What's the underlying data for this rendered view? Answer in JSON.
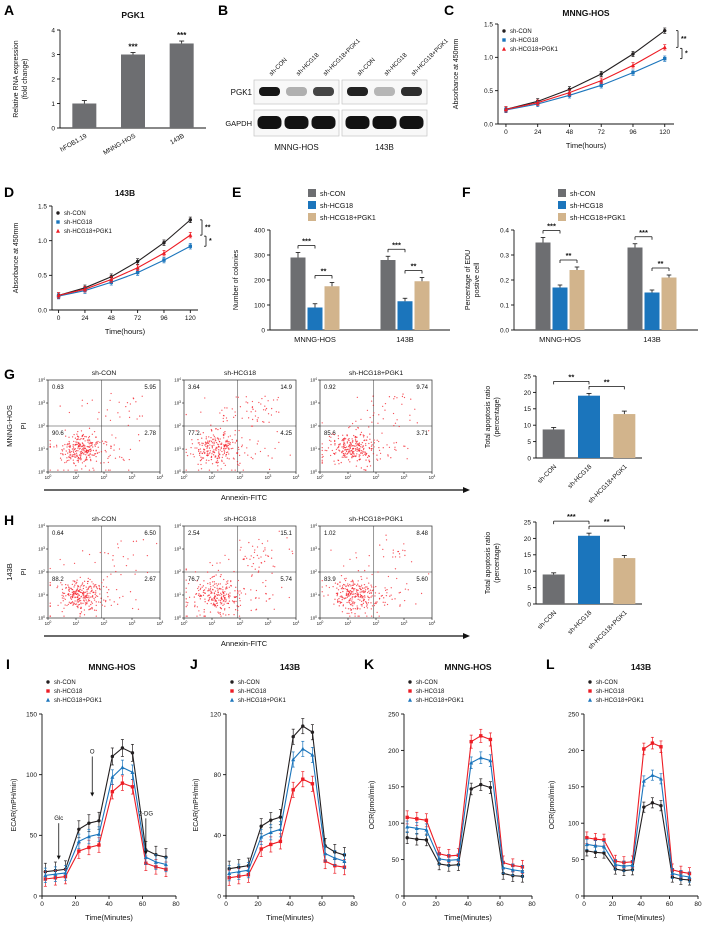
{
  "panel_letters": [
    "A",
    "B",
    "C",
    "D",
    "E",
    "F",
    "G",
    "H",
    "I",
    "J",
    "K",
    "L"
  ],
  "colors": {
    "black": "#231f20",
    "blue": "#1b75bc",
    "red": "#ed1c24",
    "gray_bar": "#6d6e71",
    "tan_bar": "#d2b48c",
    "flow_dot": "#f5222d"
  },
  "chart_data": [
    {
      "id": "A",
      "type": "bar",
      "title": "PGK1",
      "ylabel": "Relative RNA expression\n(fold change)",
      "categories": [
        "hFOB1.19",
        "MNNG-HOS",
        "143B"
      ],
      "values": [
        1.0,
        3.0,
        3.45
      ],
      "errors": [
        0.12,
        0.08,
        0.1
      ],
      "bar_color": "#6d6e71",
      "ylim": [
        0,
        4
      ],
      "yticks": [
        0,
        1,
        2,
        3,
        4
      ],
      "ydec": 0,
      "sig_above": [
        "",
        "***",
        "***"
      ],
      "xrot": 30
    },
    {
      "id": "B",
      "type": "western_blot",
      "lane_labels": [
        "sh-CON",
        "sh-HCG18",
        "sh-HCG18+PGK1"
      ],
      "row_labels": [
        "PGK1",
        "GAPDH"
      ],
      "group_labels": [
        "MNNG-HOS",
        "143B"
      ],
      "pgk1_intensity": [
        [
          0.95,
          0.3,
          0.75
        ],
        [
          0.9,
          0.28,
          0.85
        ]
      ],
      "gapdh_intensity": [
        [
          0.97,
          0.97,
          0.97
        ],
        [
          0.97,
          0.97,
          0.97
        ]
      ]
    },
    {
      "id": "C",
      "type": "line",
      "title": "MNNG-HOS",
      "ylabel": "Absorbance at 450mm",
      "xlabel": "Time(hours)",
      "x": [
        0,
        24,
        48,
        72,
        96,
        120
      ],
      "xticks": [
        0,
        24,
        48,
        72,
        96,
        120
      ],
      "xlim": [
        -6,
        127
      ],
      "ylim": [
        0,
        1.5
      ],
      "yticks": [
        0,
        0.5,
        1.0,
        1.5
      ],
      "ydec": 1,
      "sig_right": [
        "**",
        "*"
      ],
      "series": [
        {
          "name": "sh-CON",
          "color": "#231f20",
          "marker": "circle",
          "err": 0.04,
          "values": [
            0.22,
            0.34,
            0.52,
            0.75,
            1.05,
            1.4
          ]
        },
        {
          "name": "sh-HCG18",
          "color": "#1b75bc",
          "marker": "square",
          "err": 0.04,
          "values": [
            0.21,
            0.3,
            0.43,
            0.58,
            0.77,
            0.98
          ]
        },
        {
          "name": "sh-HCG18+PGK1",
          "color": "#ed1c24",
          "marker": "triangle",
          "err": 0.04,
          "values": [
            0.22,
            0.32,
            0.47,
            0.65,
            0.88,
            1.15
          ]
        }
      ]
    },
    {
      "id": "D",
      "type": "line",
      "title": "143B",
      "ylabel": "Absorbance at 450mm",
      "xlabel": "Time(hours)",
      "x": [
        0,
        24,
        48,
        72,
        96,
        120
      ],
      "xticks": [
        0,
        24,
        48,
        72,
        96,
        120
      ],
      "xlim": [
        -6,
        127
      ],
      "ylim": [
        0,
        1.5
      ],
      "yticks": [
        0,
        0.5,
        1.0,
        1.5
      ],
      "ydec": 1,
      "sig_right": [
        "**",
        "*"
      ],
      "series": [
        {
          "name": "sh-CON",
          "color": "#231f20",
          "marker": "circle",
          "err": 0.04,
          "values": [
            0.21,
            0.32,
            0.48,
            0.7,
            0.97,
            1.3
          ]
        },
        {
          "name": "sh-HCG18",
          "color": "#1b75bc",
          "marker": "square",
          "err": 0.04,
          "values": [
            0.2,
            0.28,
            0.4,
            0.54,
            0.72,
            0.92
          ]
        },
        {
          "name": "sh-HCG18+PGK1",
          "color": "#ed1c24",
          "marker": "triangle",
          "err": 0.04,
          "values": [
            0.21,
            0.3,
            0.44,
            0.61,
            0.82,
            1.08
          ]
        }
      ]
    },
    {
      "id": "E",
      "type": "grouped_bar",
      "ylabel": "Number of colonies",
      "categories": [
        "MNNG-HOS",
        "143B"
      ],
      "ylim": [
        0,
        400
      ],
      "yticks": [
        0,
        100,
        200,
        300,
        400
      ],
      "ydec": 0,
      "series": [
        {
          "name": "sh-CON",
          "color": "#6d6e71",
          "values": [
            290,
            280
          ],
          "errors": [
            20,
            15
          ]
        },
        {
          "name": "sh-HCG18",
          "color": "#1b75bc",
          "values": [
            90,
            115
          ],
          "errors": [
            15,
            12
          ]
        },
        {
          "name": "sh-HCG18+PGK1",
          "color": "#d2b48c",
          "values": [
            175,
            195
          ],
          "errors": [
            15,
            15
          ]
        }
      ],
      "sig": [
        [
          0,
          0,
          1,
          "***"
        ],
        [
          0,
          1,
          2,
          "**"
        ],
        [
          1,
          0,
          1,
          "***"
        ],
        [
          1,
          1,
          2,
          "**"
        ]
      ]
    },
    {
      "id": "F",
      "type": "grouped_bar",
      "ylabel": "Percentage of EDU\npostive cell",
      "categories": [
        "MNNG-HOS",
        "143B"
      ],
      "ylim": [
        0,
        0.4
      ],
      "yticks": [
        0,
        0.1,
        0.2,
        0.3,
        0.4
      ],
      "ydec": 1,
      "series": [
        {
          "name": "sh-CON",
          "color": "#6d6e71",
          "values": [
            0.35,
            0.33
          ],
          "errors": [
            0.02,
            0.015
          ]
        },
        {
          "name": "sh-HCG18",
          "color": "#1b75bc",
          "values": [
            0.17,
            0.15
          ],
          "errors": [
            0.01,
            0.01
          ]
        },
        {
          "name": "sh-HCG18+PGK1",
          "color": "#d2b48c",
          "values": [
            0.24,
            0.21
          ],
          "errors": [
            0.012,
            0.01
          ]
        }
      ],
      "sig": [
        [
          0,
          0,
          1,
          "***"
        ],
        [
          0,
          1,
          2,
          "**"
        ],
        [
          1,
          0,
          1,
          "***"
        ],
        [
          1,
          1,
          2,
          "**"
        ]
      ]
    },
    {
      "id": "G",
      "type": "flow_row",
      "cell_line": "MNNG-HOS",
      "pi_label": "PI",
      "xlabel": "Annexin-FITC",
      "tick_exponents": [
        "0",
        "1",
        "2",
        "3",
        "4"
      ],
      "plots": [
        {
          "title": "sh-CON",
          "ul": "0.63",
          "ur": "5.95",
          "ll": "90.6",
          "lr": "2.78"
        },
        {
          "title": "sh-HCG18",
          "ul": "3.64",
          "ur": "14.9",
          "ll": "77.2",
          "lr": "4.25"
        },
        {
          "title": "sh-HCG18+PGK1",
          "ul": "0.92",
          "ur": "9.74",
          "ll": "85.6",
          "lr": "3.71"
        }
      ]
    },
    {
      "id": "Gbar",
      "type": "bar",
      "ylabel": "Total apoptosis ratio\n(percentage)",
      "categories": [
        "sh-CON",
        "sh-HCG18",
        "sh-HCG18+PGK1"
      ],
      "values": [
        8.7,
        19.0,
        13.4
      ],
      "errors": [
        0.6,
        0.7,
        0.9
      ],
      "bar_colors": [
        "#6d6e71",
        "#1b75bc",
        "#d2b48c"
      ],
      "ylim": [
        0,
        25
      ],
      "yticks": [
        0,
        5,
        10,
        15,
        20,
        25
      ],
      "ydec": 0,
      "sig_pairs": [
        [
          0,
          1,
          "**"
        ],
        [
          1,
          2,
          "**"
        ]
      ],
      "xrot": 45
    },
    {
      "id": "H",
      "type": "flow_row",
      "cell_line": "143B",
      "pi_label": "PI",
      "xlabel": "Annexin-FITC",
      "tick_exponents": [
        "0",
        "1",
        "2",
        "3",
        "4"
      ],
      "plots": [
        {
          "title": "sh-CON",
          "ul": "0.64",
          "ur": "6.50",
          "ll": "88.2",
          "lr": "2.67"
        },
        {
          "title": "sh-HCG18",
          "ul": "2.54",
          "ur": "15.1",
          "ll": "76.7",
          "lr": "5.74"
        },
        {
          "title": "sh-HCG18+PGK1",
          "ul": "1.02",
          "ur": "8.48",
          "ll": "83.9",
          "lr": "5.60"
        }
      ]
    },
    {
      "id": "Hbar",
      "type": "bar",
      "ylabel": "Total apoptosis ratio\n(percentage)",
      "categories": [
        "sh-CON",
        "sh-HCG18",
        "sh-HCG18+PGK1"
      ],
      "values": [
        9.0,
        20.8,
        14.0
      ],
      "errors": [
        0.5,
        0.8,
        0.8
      ],
      "bar_colors": [
        "#6d6e71",
        "#1b75bc",
        "#d2b48c"
      ],
      "ylim": [
        0,
        25
      ],
      "yticks": [
        0,
        5,
        10,
        15,
        20,
        25
      ],
      "ydec": 0,
      "sig_pairs": [
        [
          0,
          1,
          "***"
        ],
        [
          1,
          2,
          "**"
        ]
      ],
      "xrot": 45
    },
    {
      "id": "I",
      "type": "line",
      "title": "MNNG-HOS",
      "ylabel": "ECAR(mPH/min)",
      "xlabel": "Time(Minutes)",
      "x": [
        2,
        8,
        14,
        22,
        28,
        34,
        42,
        48,
        54,
        62,
        68,
        74
      ],
      "xticks": [
        0,
        20,
        40,
        60,
        80
      ],
      "xlim": [
        0,
        80
      ],
      "ylim": [
        0,
        150
      ],
      "yticks": [
        0,
        50,
        100,
        150
      ],
      "ydec": 0,
      "annotations": [
        {
          "label": "Glc",
          "x": 10,
          "ty": 60,
          "by": 30
        },
        {
          "label": "O",
          "x": 30,
          "ty": 115,
          "by": 82
        },
        {
          "label": "2-DG",
          "x": 62,
          "ty": 64,
          "by": 34
        }
      ],
      "series": [
        {
          "name": "sh-CON",
          "color": "#231f20",
          "marker": "circle",
          "err": 7,
          "values": [
            20,
            21,
            22,
            55,
            60,
            62,
            115,
            122,
            118,
            38,
            34,
            32
          ]
        },
        {
          "name": "sh-HCG18",
          "color": "#ed1c24",
          "marker": "square",
          "err": 6,
          "values": [
            14,
            15,
            16,
            37,
            40,
            42,
            86,
            93,
            90,
            27,
            24,
            22
          ]
        },
        {
          "name": "sh-HCG18+PGK1",
          "color": "#1b75bc",
          "marker": "triangle",
          "err": 6,
          "values": [
            17,
            18,
            19,
            45,
            49,
            51,
            98,
            106,
            102,
            32,
            28,
            26
          ]
        }
      ]
    },
    {
      "id": "J",
      "type": "line",
      "title": "143B",
      "ylabel": "ECAR(mPH/min)",
      "xlabel": "Time(Minutes)",
      "x": [
        2,
        8,
        14,
        22,
        28,
        34,
        42,
        48,
        54,
        62,
        68,
        74
      ],
      "xticks": [
        0,
        20,
        40,
        60,
        80
      ],
      "xlim": [
        0,
        80
      ],
      "ylim": [
        0,
        120
      ],
      "yticks": [
        0,
        40,
        80,
        120
      ],
      "ydec": 0,
      "series": [
        {
          "name": "sh-CON",
          "color": "#231f20",
          "marker": "circle",
          "err": 5,
          "values": [
            18,
            19,
            20,
            46,
            50,
            52,
            105,
            112,
            108,
            33,
            29,
            27
          ]
        },
        {
          "name": "sh-HCG18",
          "color": "#ed1c24",
          "marker": "square",
          "err": 5,
          "values": [
            12,
            13,
            14,
            31,
            34,
            36,
            70,
            77,
            74,
            23,
            20,
            19
          ]
        },
        {
          "name": "sh-HCG18+PGK1",
          "color": "#1b75bc",
          "marker": "triangle",
          "err": 5,
          "values": [
            15,
            16,
            17,
            39,
            42,
            44,
            90,
            97,
            93,
            28,
            25,
            23
          ]
        }
      ]
    },
    {
      "id": "K",
      "type": "line",
      "title": "MNNG-HOS",
      "ylabel": "OCR(pmol/min)",
      "xlabel": "Time(Minutes)",
      "x": [
        2,
        8,
        14,
        22,
        28,
        34,
        42,
        48,
        54,
        62,
        68,
        74
      ],
      "xticks": [
        0,
        20,
        40,
        60,
        80
      ],
      "xlim": [
        0,
        80
      ],
      "ylim": [
        0,
        250
      ],
      "yticks": [
        0,
        50,
        100,
        150,
        200,
        250
      ],
      "ydec": 0,
      "series": [
        {
          "name": "sh-CON",
          "color": "#231f20",
          "marker": "circle",
          "err": 8,
          "values": [
            80,
            78,
            77,
            44,
            42,
            43,
            147,
            153,
            149,
            31,
            28,
            27
          ]
        },
        {
          "name": "sh-HCG18",
          "color": "#ed1c24",
          "marker": "square",
          "err": 9,
          "values": [
            108,
            106,
            104,
            58,
            55,
            56,
            212,
            220,
            215,
            46,
            42,
            40
          ]
        },
        {
          "name": "sh-HCG18+PGK1",
          "color": "#1b75bc",
          "marker": "triangle",
          "err": 8,
          "values": [
            95,
            93,
            91,
            51,
            49,
            50,
            183,
            190,
            186,
            39,
            36,
            34
          ]
        }
      ]
    },
    {
      "id": "L",
      "type": "line",
      "title": "143B",
      "ylabel": "OCR(pmol/min)",
      "xlabel": "Time(Minutes)",
      "x": [
        2,
        8,
        14,
        22,
        28,
        34,
        42,
        48,
        54,
        62,
        68,
        74
      ],
      "xticks": [
        0,
        20,
        40,
        60,
        80
      ],
      "xlim": [
        0,
        80
      ],
      "ylim": [
        0,
        250
      ],
      "yticks": [
        0,
        50,
        100,
        150,
        200,
        250
      ],
      "ydec": 0,
      "series": [
        {
          "name": "sh-CON",
          "color": "#231f20",
          "marker": "circle",
          "err": 7,
          "values": [
            62,
            60,
            59,
            37,
            35,
            36,
            122,
            128,
            124,
            26,
            23,
            22
          ]
        },
        {
          "name": "sh-HCG18",
          "color": "#ed1c24",
          "marker": "square",
          "err": 8,
          "values": [
            80,
            78,
            77,
            48,
            46,
            47,
            202,
            210,
            205,
            36,
            33,
            31
          ]
        },
        {
          "name": "sh-HCG18+PGK1",
          "color": "#1b75bc",
          "marker": "triangle",
          "err": 7,
          "values": [
            71,
            69,
            68,
            43,
            41,
            42,
            158,
            166,
            161,
            31,
            28,
            26
          ]
        }
      ]
    }
  ]
}
